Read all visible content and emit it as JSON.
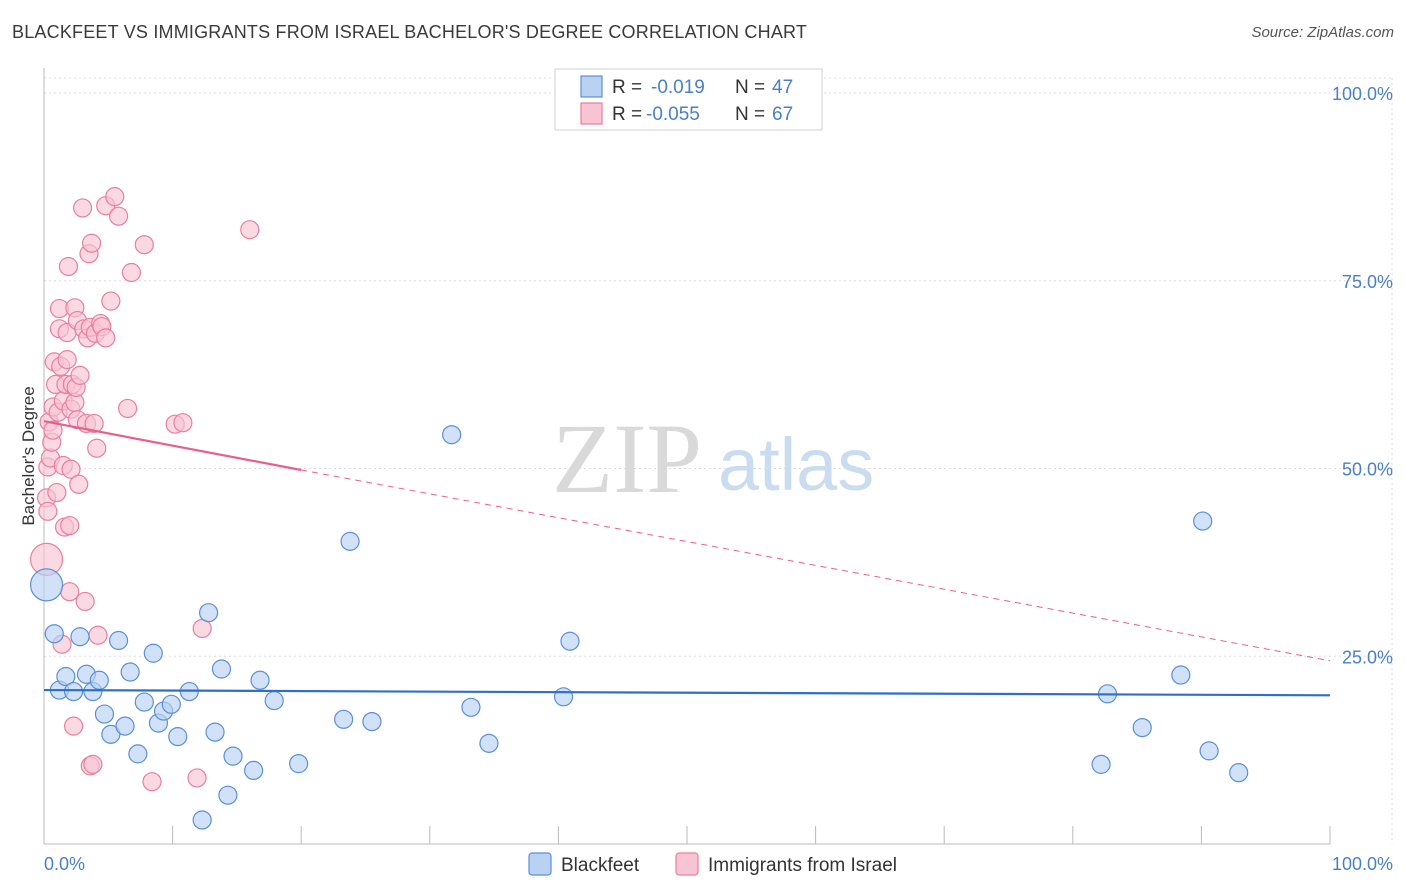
{
  "page": {
    "title": "BLACKFEET VS IMMIGRANTS FROM ISRAEL BACHELOR'S DEGREE CORRELATION CHART",
    "source": "Source: ZipAtlas.com"
  },
  "legend": {
    "r_label": "R =",
    "n_label": "N =",
    "series": [
      {
        "name": "Blackfeet",
        "r": "-0.019",
        "n": "47"
      },
      {
        "name": "Immigrants from Israel",
        "r": "-0.055",
        "n": "67"
      }
    ]
  },
  "watermark": {
    "zip": "ZIP",
    "atlas": "atlas"
  },
  "colors": {
    "blue_fill": "#b9d1f2",
    "blue_stroke": "#5b8fd6",
    "blue_line": "#2f6fc6",
    "pink_fill": "#f8c4d4",
    "pink_stroke": "#e97f9f",
    "pink_line": "#e8608a",
    "tick_text": "#4a7fc8"
  },
  "chart_data": {
    "type": "scatter",
    "title": "BLACKFEET VS IMMIGRANTS FROM ISRAEL BACHELOR'S DEGREE CORRELATION CHART",
    "xlabel": "",
    "ylabel": "Bachelor's Degree",
    "xlim": [
      0,
      100
    ],
    "ylim": [
      0,
      102
    ],
    "x_tick_labels": [
      "0.0%",
      "100.0%"
    ],
    "y_ticks": [
      {
        "value": 25,
        "label": "25.0%"
      },
      {
        "value": 50,
        "label": "50.0%"
      },
      {
        "value": 75,
        "label": "75.0%"
      },
      {
        "value": 100,
        "label": "100.0%"
      }
    ],
    "grid": true,
    "legend_position": "top-center",
    "series": [
      {
        "name": "Blackfeet",
        "color": "#5b8fd6",
        "points": [
          [
            0.2,
            34.5
          ],
          [
            0.8,
            28
          ],
          [
            1.2,
            20.5
          ],
          [
            1.7,
            22.3
          ],
          [
            2.3,
            20.3
          ],
          [
            2.8,
            27.6
          ],
          [
            3.3,
            22.6
          ],
          [
            3.8,
            20.3
          ],
          [
            4.3,
            21.8
          ],
          [
            4.7,
            17.3
          ],
          [
            5.2,
            14.6
          ],
          [
            5.8,
            27.1
          ],
          [
            6.3,
            15.7
          ],
          [
            6.7,
            22.9
          ],
          [
            7.3,
            12
          ],
          [
            7.8,
            18.9
          ],
          [
            8.5,
            25.4
          ],
          [
            8.9,
            16.1
          ],
          [
            9.3,
            17.7
          ],
          [
            9.9,
            18.6
          ],
          [
            10.4,
            14.3
          ],
          [
            11.3,
            20.3
          ],
          [
            12.3,
            3.2
          ],
          [
            12.8,
            30.8
          ],
          [
            13.3,
            14.9
          ],
          [
            13.8,
            23.3
          ],
          [
            14.3,
            6.5
          ],
          [
            14.7,
            11.7
          ],
          [
            16.3,
            9.8
          ],
          [
            16.8,
            21.8
          ],
          [
            17.9,
            19.1
          ],
          [
            19.8,
            10.7
          ],
          [
            23.8,
            40.3
          ],
          [
            23.3,
            16.6
          ],
          [
            25.5,
            16.3
          ],
          [
            31.7,
            54.5
          ],
          [
            33.2,
            18.2
          ],
          [
            34.6,
            13.4
          ],
          [
            40.4,
            19.6
          ],
          [
            40.9,
            27
          ],
          [
            82.7,
            20
          ],
          [
            82.2,
            10.6
          ],
          [
            85.4,
            15.5
          ],
          [
            88.4,
            22.5
          ],
          [
            90.1,
            43
          ],
          [
            90.6,
            12.4
          ],
          [
            92.9,
            9.5
          ]
        ]
      },
      {
        "name": "Immigrants from Israel",
        "color": "#e97f9f",
        "points": [
          [
            0.2,
            37.9
          ],
          [
            0.2,
            46.1
          ],
          [
            0.3,
            44.3
          ],
          [
            0.3,
            50.2
          ],
          [
            0.4,
            56.2
          ],
          [
            0.5,
            51.4
          ],
          [
            0.6,
            53.5
          ],
          [
            0.7,
            55.1
          ],
          [
            0.7,
            58.2
          ],
          [
            0.8,
            64.2
          ],
          [
            0.9,
            61.2
          ],
          [
            1,
            46.8
          ],
          [
            1.1,
            57.5
          ],
          [
            1.2,
            68.6
          ],
          [
            1.2,
            71.3
          ],
          [
            1.3,
            63.6
          ],
          [
            1.4,
            26.6
          ],
          [
            1.5,
            50.4
          ],
          [
            1.5,
            59
          ],
          [
            1.6,
            42.2
          ],
          [
            1.7,
            61.2
          ],
          [
            1.8,
            64.5
          ],
          [
            1.8,
            68.1
          ],
          [
            1.9,
            76.9
          ],
          [
            2,
            33.6
          ],
          [
            2,
            42.4
          ],
          [
            2.1,
            57.9
          ],
          [
            2.1,
            49.9
          ],
          [
            2.2,
            61.2
          ],
          [
            2.3,
            15.7
          ],
          [
            2.4,
            71.4
          ],
          [
            2.4,
            58.8
          ],
          [
            2.5,
            60.8
          ],
          [
            2.6,
            69.7
          ],
          [
            2.6,
            56.5
          ],
          [
            2.7,
            47.9
          ],
          [
            2.8,
            62.4
          ],
          [
            3,
            84.7
          ],
          [
            3.1,
            68.6
          ],
          [
            3.2,
            32.3
          ],
          [
            3.3,
            56
          ],
          [
            3.4,
            67.4
          ],
          [
            3.5,
            78.6
          ],
          [
            3.6,
            68.8
          ],
          [
            3.6,
            10.4
          ],
          [
            3.7,
            80
          ],
          [
            3.8,
            10.6
          ],
          [
            3.9,
            56
          ],
          [
            4,
            68
          ],
          [
            4.1,
            52.7
          ],
          [
            4.2,
            27.8
          ],
          [
            4.4,
            69.3
          ],
          [
            4.5,
            68.9
          ],
          [
            4.8,
            67.4
          ],
          [
            4.8,
            85
          ],
          [
            5.2,
            72.3
          ],
          [
            5.5,
            86.2
          ],
          [
            5.8,
            83.6
          ],
          [
            6.5,
            58
          ],
          [
            6.8,
            76.1
          ],
          [
            7.8,
            79.8
          ],
          [
            8.4,
            8.3
          ],
          [
            10.2,
            55.9
          ],
          [
            10.8,
            56.1
          ],
          [
            11.9,
            8.8
          ],
          [
            12.3,
            28.7
          ],
          [
            16.0,
            81.8
          ]
        ]
      }
    ],
    "trendlines": [
      {
        "series": "Blackfeet",
        "style": "solid",
        "x": [
          0,
          100
        ],
        "y": [
          20.5,
          19.8
        ]
      },
      {
        "series": "Immigrants from Israel",
        "style": "solid",
        "x": [
          0,
          20
        ],
        "y": [
          56.3,
          49.8
        ]
      },
      {
        "series": "Immigrants from Israel",
        "style": "dashed",
        "x": [
          20,
          100
        ],
        "y": [
          49.8,
          24.4
        ]
      }
    ]
  }
}
